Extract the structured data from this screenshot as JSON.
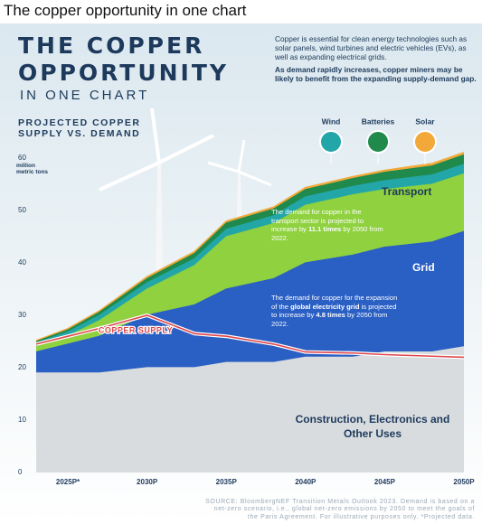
{
  "caption": "The copper opportunity in one chart",
  "chart_data": {
    "type": "stacked-area",
    "title": [
      "THE COPPER",
      "OPPORTUNITY"
    ],
    "title_tail": "IN ONE CHART",
    "intro": [
      "Copper is essential for clean energy technologies such as solar panels, wind turbines and electric vehicles (EVs), as well as expanding electrical grids.",
      "As demand rapidly increases, copper miners may be likely to benefit from the expanding supply-demand gap."
    ],
    "subtitle": "PROJECTED COPPER SUPPLY VS. DEMAND",
    "y_unit": "million metric tons",
    "x": [
      2023,
      2025,
      2027,
      2030,
      2033,
      2035,
      2038,
      2040,
      2043,
      2045,
      2048,
      2050
    ],
    "xlim": [
      2023,
      2050
    ],
    "xticks": [
      {
        "value": 2025,
        "label": "2025P*"
      },
      {
        "value": 2030,
        "label": "2030P"
      },
      {
        "value": 2035,
        "label": "2035P"
      },
      {
        "value": 2040,
        "label": "2040P"
      },
      {
        "value": 2045,
        "label": "2045P"
      },
      {
        "value": 2050,
        "label": "2050P"
      }
    ],
    "ylim": [
      0,
      60
    ],
    "yticks": [
      0,
      10,
      20,
      30,
      40,
      50,
      60
    ],
    "grid": false,
    "series": [
      {
        "name": "Construction, Electronics and Other Uses",
        "color": "#d9dcdf",
        "values": [
          19,
          19,
          19,
          20,
          20,
          21,
          21,
          22,
          22,
          23,
          23,
          24
        ]
      },
      {
        "name": "Grid",
        "color": "#2a5fc4",
        "values": [
          4,
          5.5,
          7,
          10,
          12,
          14,
          16,
          18,
          19.5,
          20,
          21,
          22
        ]
      },
      {
        "name": "Transport",
        "color": "#8fd13f",
        "values": [
          1,
          1.5,
          3,
          5,
          7.5,
          10,
          10.5,
          11,
          11.5,
          11,
          11,
          11
        ]
      },
      {
        "name": "Wind",
        "color": "#23a6a8",
        "values": [
          0.7,
          0.8,
          1,
          1.2,
          1.3,
          1.4,
          1.5,
          1.6,
          1.6,
          1.7,
          1.8,
          1.8
        ]
      },
      {
        "name": "Batteries",
        "color": "#1f8a4c",
        "values": [
          0.3,
          0.4,
          0.6,
          0.8,
          1,
          1.2,
          1.3,
          1.4,
          1.5,
          1.6,
          1.7,
          1.8
        ]
      },
      {
        "name": "Solar",
        "color": "#f3a93a",
        "values": [
          0.2,
          0.3,
          0.3,
          0.4,
          0.4,
          0.4,
          0.4,
          0.4,
          0.4,
          0.4,
          0.5,
          0.5
        ]
      }
    ],
    "supply": {
      "name": "COPPER SUPPLY",
      "color": "#e0474c",
      "values": [
        24.5,
        26,
        27.5,
        30,
        26.5,
        26,
        24.5,
        23,
        22.8,
        22.5,
        22.2,
        22
      ]
    },
    "annotations": {
      "transport": [
        "The demand for copper in the transport sector is projected to increase by ",
        "11.1 times",
        " by 2050 from 2022."
      ],
      "grid": [
        "The demand for copper for the expansion of the ",
        "global electricity grid",
        " is projected to increase by ",
        "4.8 times",
        " by 2050 from 2022."
      ]
    },
    "source": "SOURCE: BloombergNEF Transition Metals Outlook 2023. Demand is based on a net-zero scenario, i.e., global net-zero emissions by 2050 to meet the goals of the Paris Agreement. For illustrative purposes only. *Projected data."
  }
}
